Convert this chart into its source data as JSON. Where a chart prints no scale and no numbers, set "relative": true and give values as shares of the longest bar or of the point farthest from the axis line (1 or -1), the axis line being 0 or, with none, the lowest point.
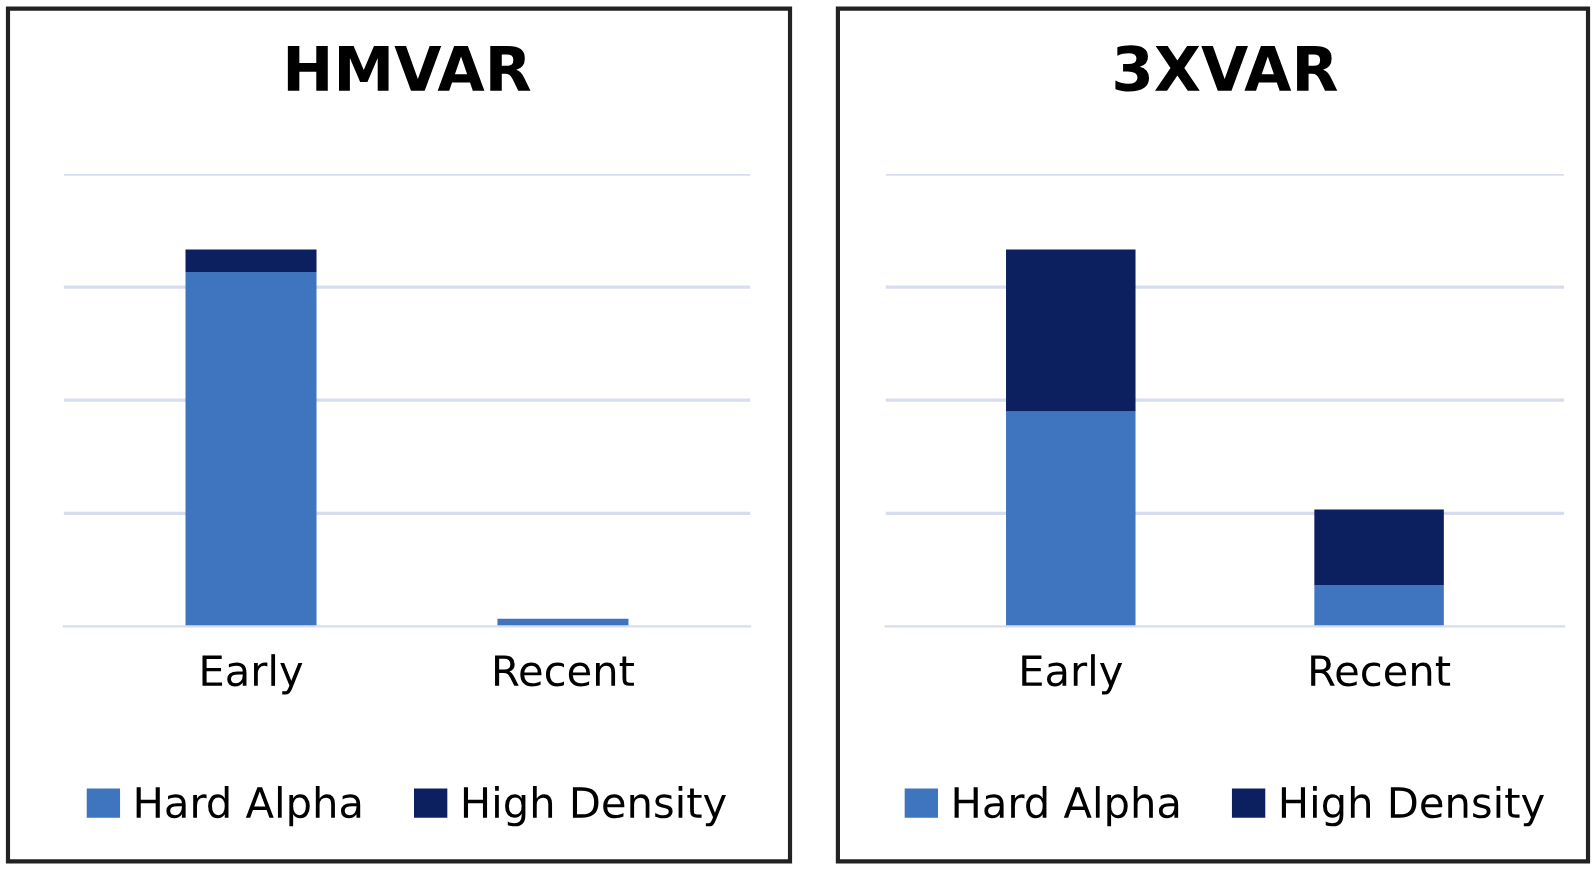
{
  "chart_data": [
    {
      "type": "bar",
      "title": "HMVAR",
      "categories": [
        "Early",
        "Recent"
      ],
      "stacked": true,
      "relative": true,
      "grid": "y",
      "legend": "bottom",
      "series": [
        {
          "name": "Hard Alpha",
          "color": "#3f75bf",
          "values": [
            0.94,
            0.02
          ]
        },
        {
          "name": "High Density",
          "color": "#0c1f5e",
          "values": [
            0.06,
            0
          ]
        }
      ]
    },
    {
      "type": "bar",
      "title": "3XVAR",
      "categories": [
        "Early",
        "Recent"
      ],
      "stacked": true,
      "relative": true,
      "grid": "y",
      "legend": "bottom",
      "series": [
        {
          "name": "Hard Alpha",
          "color": "#3f75bf",
          "values": [
            0.57,
            0.11
          ]
        },
        {
          "name": "High Density",
          "color": "#0c1f5e",
          "values": [
            0.43,
            0.2
          ]
        }
      ]
    }
  ]
}
